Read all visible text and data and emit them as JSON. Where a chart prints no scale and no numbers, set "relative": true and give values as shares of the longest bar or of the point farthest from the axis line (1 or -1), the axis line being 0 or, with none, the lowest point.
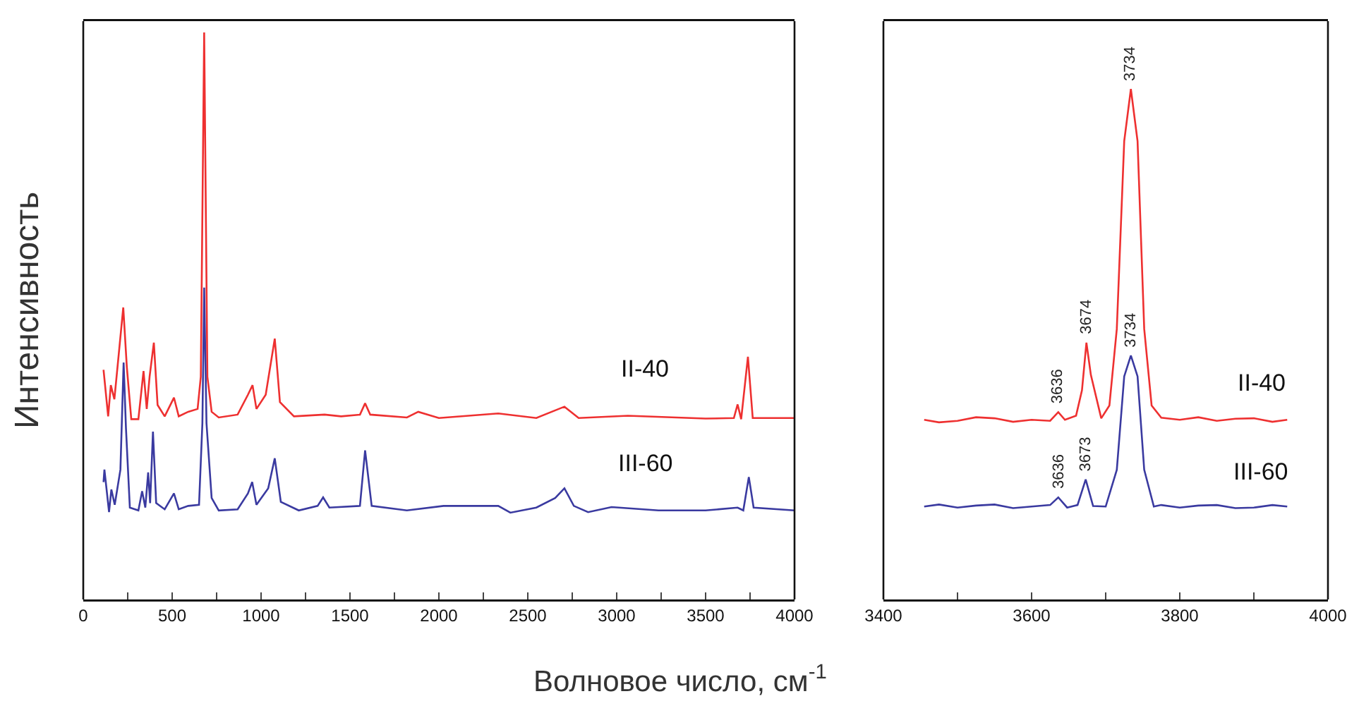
{
  "chart_data": [
    {
      "type": "line",
      "relative": true,
      "ylabel": "Интенсивность",
      "xlabel": "Волновое число, см$^{-1}$",
      "xlim": [
        0,
        4000
      ],
      "xticks": [
        0,
        {
          "value": 250,
          "label": null
        },
        500,
        {
          "value": 750,
          "label": null
        },
        1000,
        {
          "value": 1250,
          "label": null
        },
        1500,
        {
          "value": 1750,
          "label": null
        },
        2000,
        {
          "value": 2250,
          "label": null
        },
        2500,
        {
          "value": 2750,
          "label": null
        },
        3000,
        {
          "value": 3250,
          "label": null
        },
        3500,
        {
          "value": 3750,
          "label": null
        },
        4000
      ],
      "grid": false,
      "legend": false,
      "marker": "none",
      "line_style": "solid",
      "series": [
        {
          "name": "II-40",
          "color": "#ee3030",
          "x": [
            114,
            140,
            155,
            175,
            225,
            245,
            270,
            310,
            339,
            357,
            373,
            397,
            418,
            458,
            510,
            537,
            590,
            643,
            661,
            680,
            698,
            722,
            762,
            868,
            926,
            952,
            974,
            1026,
            1077,
            1106,
            1185,
            1357,
            1450,
            1556,
            1585,
            1614,
            1820,
            1884,
            2000,
            2334,
            2548,
            2706,
            2786,
            3063,
            3500,
            3659,
            3680,
            3700,
            3738,
            3765,
            4000
          ],
          "values": [
            0.405,
            0.323,
            0.378,
            0.353,
            0.515,
            0.41,
            0.318,
            0.318,
            0.403,
            0.336,
            0.393,
            0.453,
            0.343,
            0.323,
            0.356,
            0.323,
            0.331,
            0.336,
            0.393,
            1,
            0.393,
            0.331,
            0.321,
            0.326,
            0.361,
            0.378,
            0.336,
            0.361,
            0.46,
            0.348,
            0.323,
            0.326,
            0.323,
            0.326,
            0.346,
            0.326,
            0.321,
            0.331,
            0.32,
            0.328,
            0.32,
            0.34,
            0.32,
            0.324,
            0.319,
            0.32,
            0.344,
            0.318,
            0.428,
            0.32,
            0.32
          ]
        },
        {
          "name": "III-60",
          "color": "#3a3aa0",
          "x": [
            114,
            119,
            145,
            158,
            177,
            209,
            227,
            240,
            262,
            310,
            331,
            349,
            365,
            376,
            392,
            410,
            458,
            510,
            537,
            590,
            651,
            670,
            680,
            693,
            722,
            762,
            868,
            926,
            950,
            974,
            1040,
            1077,
            1111,
            1212,
            1318,
            1349,
            1384,
            1556,
            1585,
            1622,
            1820,
            2026,
            2334,
            2402,
            2548,
            2654,
            2706,
            2759,
            2839,
            2971,
            3235,
            3500,
            3680,
            3712,
            3743,
            3770,
            4000
          ],
          "values": [
            0.207,
            0.229,
            0.154,
            0.194,
            0.167,
            0.229,
            0.418,
            0.303,
            0.162,
            0.157,
            0.191,
            0.162,
            0.224,
            0.17,
            0.296,
            0.17,
            0.159,
            0.187,
            0.159,
            0.165,
            0.167,
            0.311,
            0.55,
            0.311,
            0.179,
            0.157,
            0.159,
            0.187,
            0.207,
            0.167,
            0.196,
            0.249,
            0.172,
            0.157,
            0.165,
            0.18,
            0.162,
            0.165,
            0.263,
            0.165,
            0.157,
            0.165,
            0.165,
            0.153,
            0.162,
            0.179,
            0.196,
            0.165,
            0.154,
            0.163,
            0.157,
            0.157,
            0.162,
            0.157,
            0.216,
            0.162,
            0.157
          ]
        }
      ]
    },
    {
      "type": "line",
      "relative": true,
      "xlim": [
        3400,
        4000
      ],
      "xticks": [
        3400,
        {
          "value": 3500,
          "label": null
        },
        3600,
        {
          "value": 3700,
          "label": null
        },
        3800,
        {
          "value": 3900,
          "label": null
        },
        4000
      ],
      "grid": false,
      "legend": false,
      "marker": "none",
      "line_style": "solid",
      "annotations": [
        {
          "text": "3636",
          "x": 3636,
          "y": 0.367
        },
        {
          "text": "3674",
          "x": 3674,
          "y": 0.503
        },
        {
          "text": "3734",
          "x": 3734,
          "y": 1
        },
        {
          "text": "3636",
          "x": 3636,
          "y": 0.2
        },
        {
          "text": "3673",
          "x": 3673,
          "y": 0.235
        },
        {
          "text": "3734",
          "x": 3734,
          "y": 0.478
        }
      ],
      "series": [
        {
          "name": "II-40",
          "color": "#ee3030",
          "x": [
            3455,
            3475,
            3500,
            3525,
            3550,
            3575,
            3600,
            3625,
            3636,
            3645,
            3660,
            3668,
            3674,
            3680,
            3694,
            3705,
            3715,
            3725,
            3734,
            3743,
            3752,
            3762,
            3775,
            3800,
            3825,
            3850,
            3875,
            3900,
            3925,
            3945
          ],
          "values": [
            0.352,
            0.347,
            0.35,
            0.357,
            0.355,
            0.348,
            0.352,
            0.35,
            0.367,
            0.352,
            0.36,
            0.41,
            0.503,
            0.44,
            0.355,
            0.38,
            0.53,
            0.898,
            1,
            0.898,
            0.53,
            0.38,
            0.356,
            0.352,
            0.357,
            0.35,
            0.354,
            0.355,
            0.348,
            0.352
          ]
        },
        {
          "name": "III-60",
          "color": "#3a3aa0",
          "x": [
            3455,
            3475,
            3500,
            3525,
            3550,
            3575,
            3600,
            3625,
            3636,
            3648,
            3662,
            3673,
            3683,
            3700,
            3715,
            3725,
            3734,
            3743,
            3752,
            3765,
            3775,
            3800,
            3825,
            3850,
            3875,
            3900,
            3925,
            3945
          ],
          "values": [
            0.182,
            0.186,
            0.18,
            0.184,
            0.186,
            0.179,
            0.182,
            0.185,
            0.2,
            0.18,
            0.185,
            0.235,
            0.183,
            0.182,
            0.254,
            0.437,
            0.478,
            0.437,
            0.254,
            0.182,
            0.185,
            0.18,
            0.184,
            0.185,
            0.179,
            0.18,
            0.185,
            0.182
          ]
        }
      ]
    }
  ]
}
